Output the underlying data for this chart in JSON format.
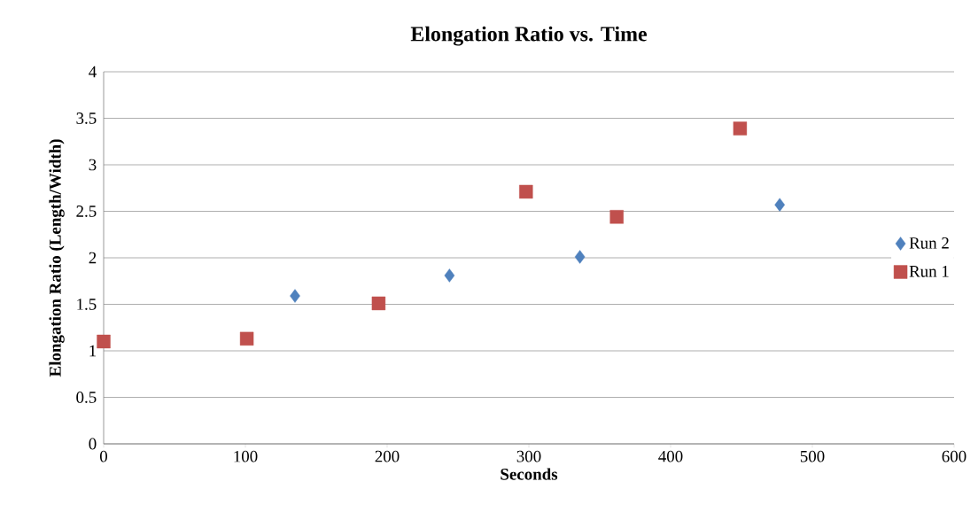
{
  "chart_data": {
    "type": "scatter",
    "title": "Elongation Ratio vs. Time",
    "xlabel": "Seconds",
    "ylabel": "Elongation Ratio (Length/Width)",
    "xlim": [
      0,
      600
    ],
    "xticks": [
      0,
      100,
      200,
      300,
      400,
      500,
      600
    ],
    "ylim": [
      0,
      4
    ],
    "yticks": [
      0,
      0.5,
      1,
      1.5,
      2,
      2.5,
      3,
      3.5,
      4
    ],
    "grid": "y",
    "legend": "right",
    "series": [
      {
        "name": "Run 2",
        "color": "#4f81bd",
        "marker": "diamond",
        "x": [
          135,
          244,
          336,
          477
        ],
        "values": [
          1.59,
          1.81,
          2.01,
          2.57
        ]
      },
      {
        "name": "Run 1",
        "color": "#c0504d",
        "marker": "square",
        "x": [
          0,
          101,
          194,
          298,
          362,
          449
        ],
        "values": [
          1.1,
          1.13,
          1.51,
          2.71,
          2.44,
          3.39
        ]
      }
    ]
  }
}
